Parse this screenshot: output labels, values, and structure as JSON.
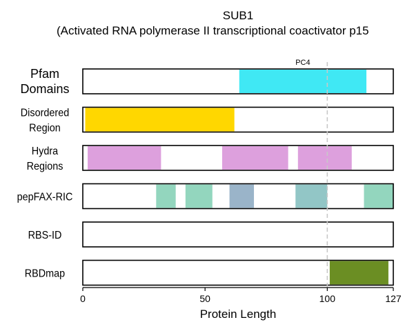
{
  "chart_data": {
    "type": "protein-domain-tracks",
    "title": "SUB1",
    "subtitle": "(Activated RNA polymerase II transcriptional coactivator p15",
    "xlabel": "Protein Length",
    "xlim": [
      0,
      127
    ],
    "xticks": [
      0,
      50,
      100,
      127
    ],
    "reference_line": 100,
    "colors": {
      "pfam": "#40E8F4",
      "disordered": "#FFD700",
      "hydra": "#DDA0DD",
      "pepfax_teal": "#93D6BE",
      "pepfax_blue": "#9AB4C9",
      "pepfax_mid": "#92C6C6",
      "rbdmap": "#6B8E23",
      "refline": "#c8c8c8"
    },
    "tracks": [
      {
        "name": "Pfam\nDomains",
        "segments": [
          {
            "start": 64,
            "end": 116,
            "color": "#40E8F4",
            "label": "PC4"
          }
        ]
      },
      {
        "name": "Disordered\nRegion",
        "segments": [
          {
            "start": 1,
            "end": 62,
            "color": "#FFD700"
          }
        ]
      },
      {
        "name": "Hydra\nRegions",
        "segments": [
          {
            "start": 2,
            "end": 32,
            "color": "#DDA0DD"
          },
          {
            "start": 57,
            "end": 84,
            "color": "#DDA0DD"
          },
          {
            "start": 88,
            "end": 110,
            "color": "#DDA0DD"
          }
        ]
      },
      {
        "name": "pepFAX-RIC",
        "segments": [
          {
            "start": 30,
            "end": 38,
            "color": "#93D6BE"
          },
          {
            "start": 42,
            "end": 53,
            "color": "#93D6BE"
          },
          {
            "start": 60,
            "end": 70,
            "color": "#9AB4C9"
          },
          {
            "start": 87,
            "end": 100,
            "color": "#92C6C6"
          },
          {
            "start": 115,
            "end": 127,
            "color": "#93D6BE"
          }
        ]
      },
      {
        "name": "RBS-ID",
        "segments": []
      },
      {
        "name": "RBDmap",
        "segments": [
          {
            "start": 101,
            "end": 125,
            "color": "#6B8E23"
          }
        ]
      }
    ]
  }
}
